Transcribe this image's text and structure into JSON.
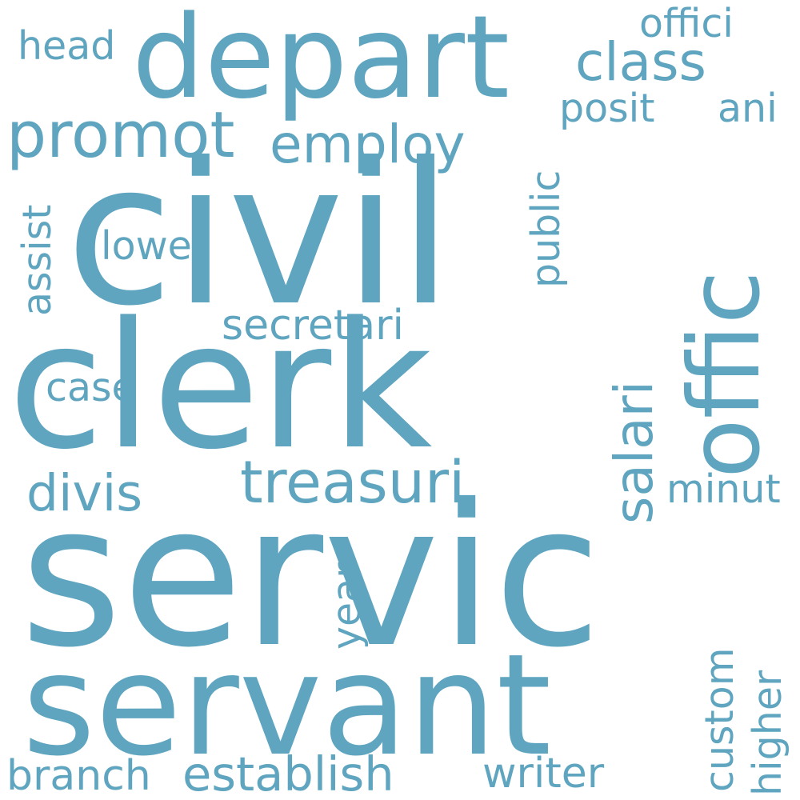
{
  "color": "#5fa5c0",
  "background": "#ffffff",
  "words": {
    "servic": "servic",
    "civil": "civil",
    "clerk": "clerk",
    "servant": "servant",
    "depart": "depart",
    "offic": "offic",
    "promot": "promot",
    "employ": "employ",
    "class": "class",
    "offici": "offici",
    "head": "head",
    "posit": "posit",
    "ani": "ani",
    "treasuri": "treasuri",
    "secretari": "secretari",
    "divis": "divis",
    "salari": "salari",
    "public": "public",
    "lower": "lower",
    "assist": "assist",
    "case": "case",
    "minut": "minut",
    "year": "year",
    "custom": "custom",
    "higher": "higher",
    "branch": "branch",
    "establish": "establish",
    "writer": "writer"
  }
}
